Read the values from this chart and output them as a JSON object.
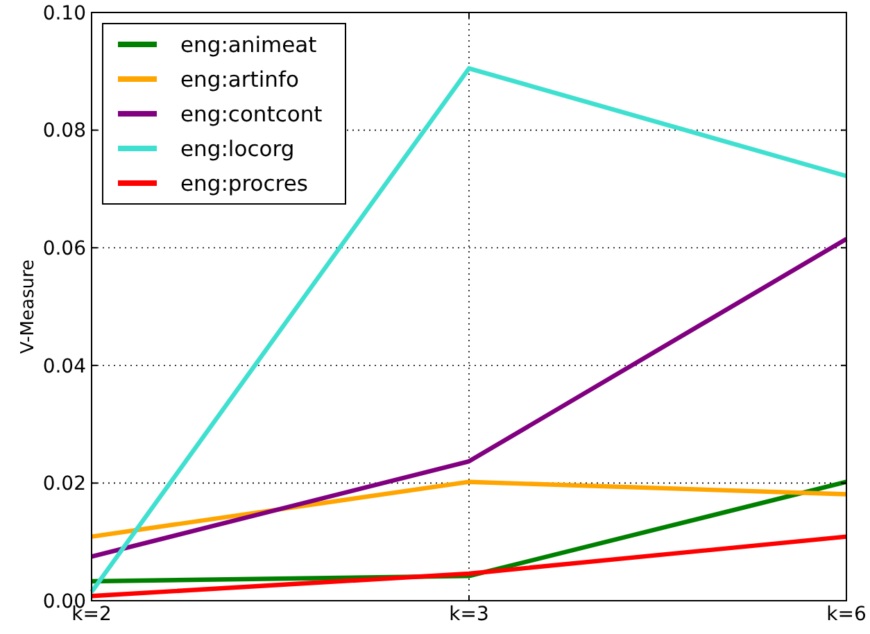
{
  "chart_data": {
    "type": "line",
    "ylabel": "V-Measure",
    "categories": [
      "k=2",
      "k=3",
      "k=6"
    ],
    "series": [
      {
        "name": "eng:animeat",
        "color": "#008000",
        "values": [
          0.0033,
          0.0042,
          0.0202
        ]
      },
      {
        "name": "eng:artinfo",
        "color": "#ffa500",
        "values": [
          0.0109,
          0.0202,
          0.0181
        ]
      },
      {
        "name": "eng:contcont",
        "color": "#800080",
        "values": [
          0.0075,
          0.0237,
          0.0615
        ]
      },
      {
        "name": "eng:locorg",
        "color": "#40e0d0",
        "values": [
          0.0015,
          0.0905,
          0.0722
        ]
      },
      {
        "name": "eng:procres",
        "color": "#ff0000",
        "values": [
          0.0008,
          0.0046,
          0.0109
        ]
      }
    ],
    "ylim": [
      0,
      0.1
    ],
    "yticks": [
      {
        "value": 0,
        "label": "0.00"
      },
      {
        "value": 0.02,
        "label": "0.02"
      },
      {
        "value": 0.04,
        "label": "0.04"
      },
      {
        "value": 0.06,
        "label": "0.06"
      },
      {
        "value": 0.08,
        "label": "0.08"
      },
      {
        "value": 0.1,
        "label": "0.10"
      }
    ],
    "grid": true,
    "legend": "top left"
  }
}
